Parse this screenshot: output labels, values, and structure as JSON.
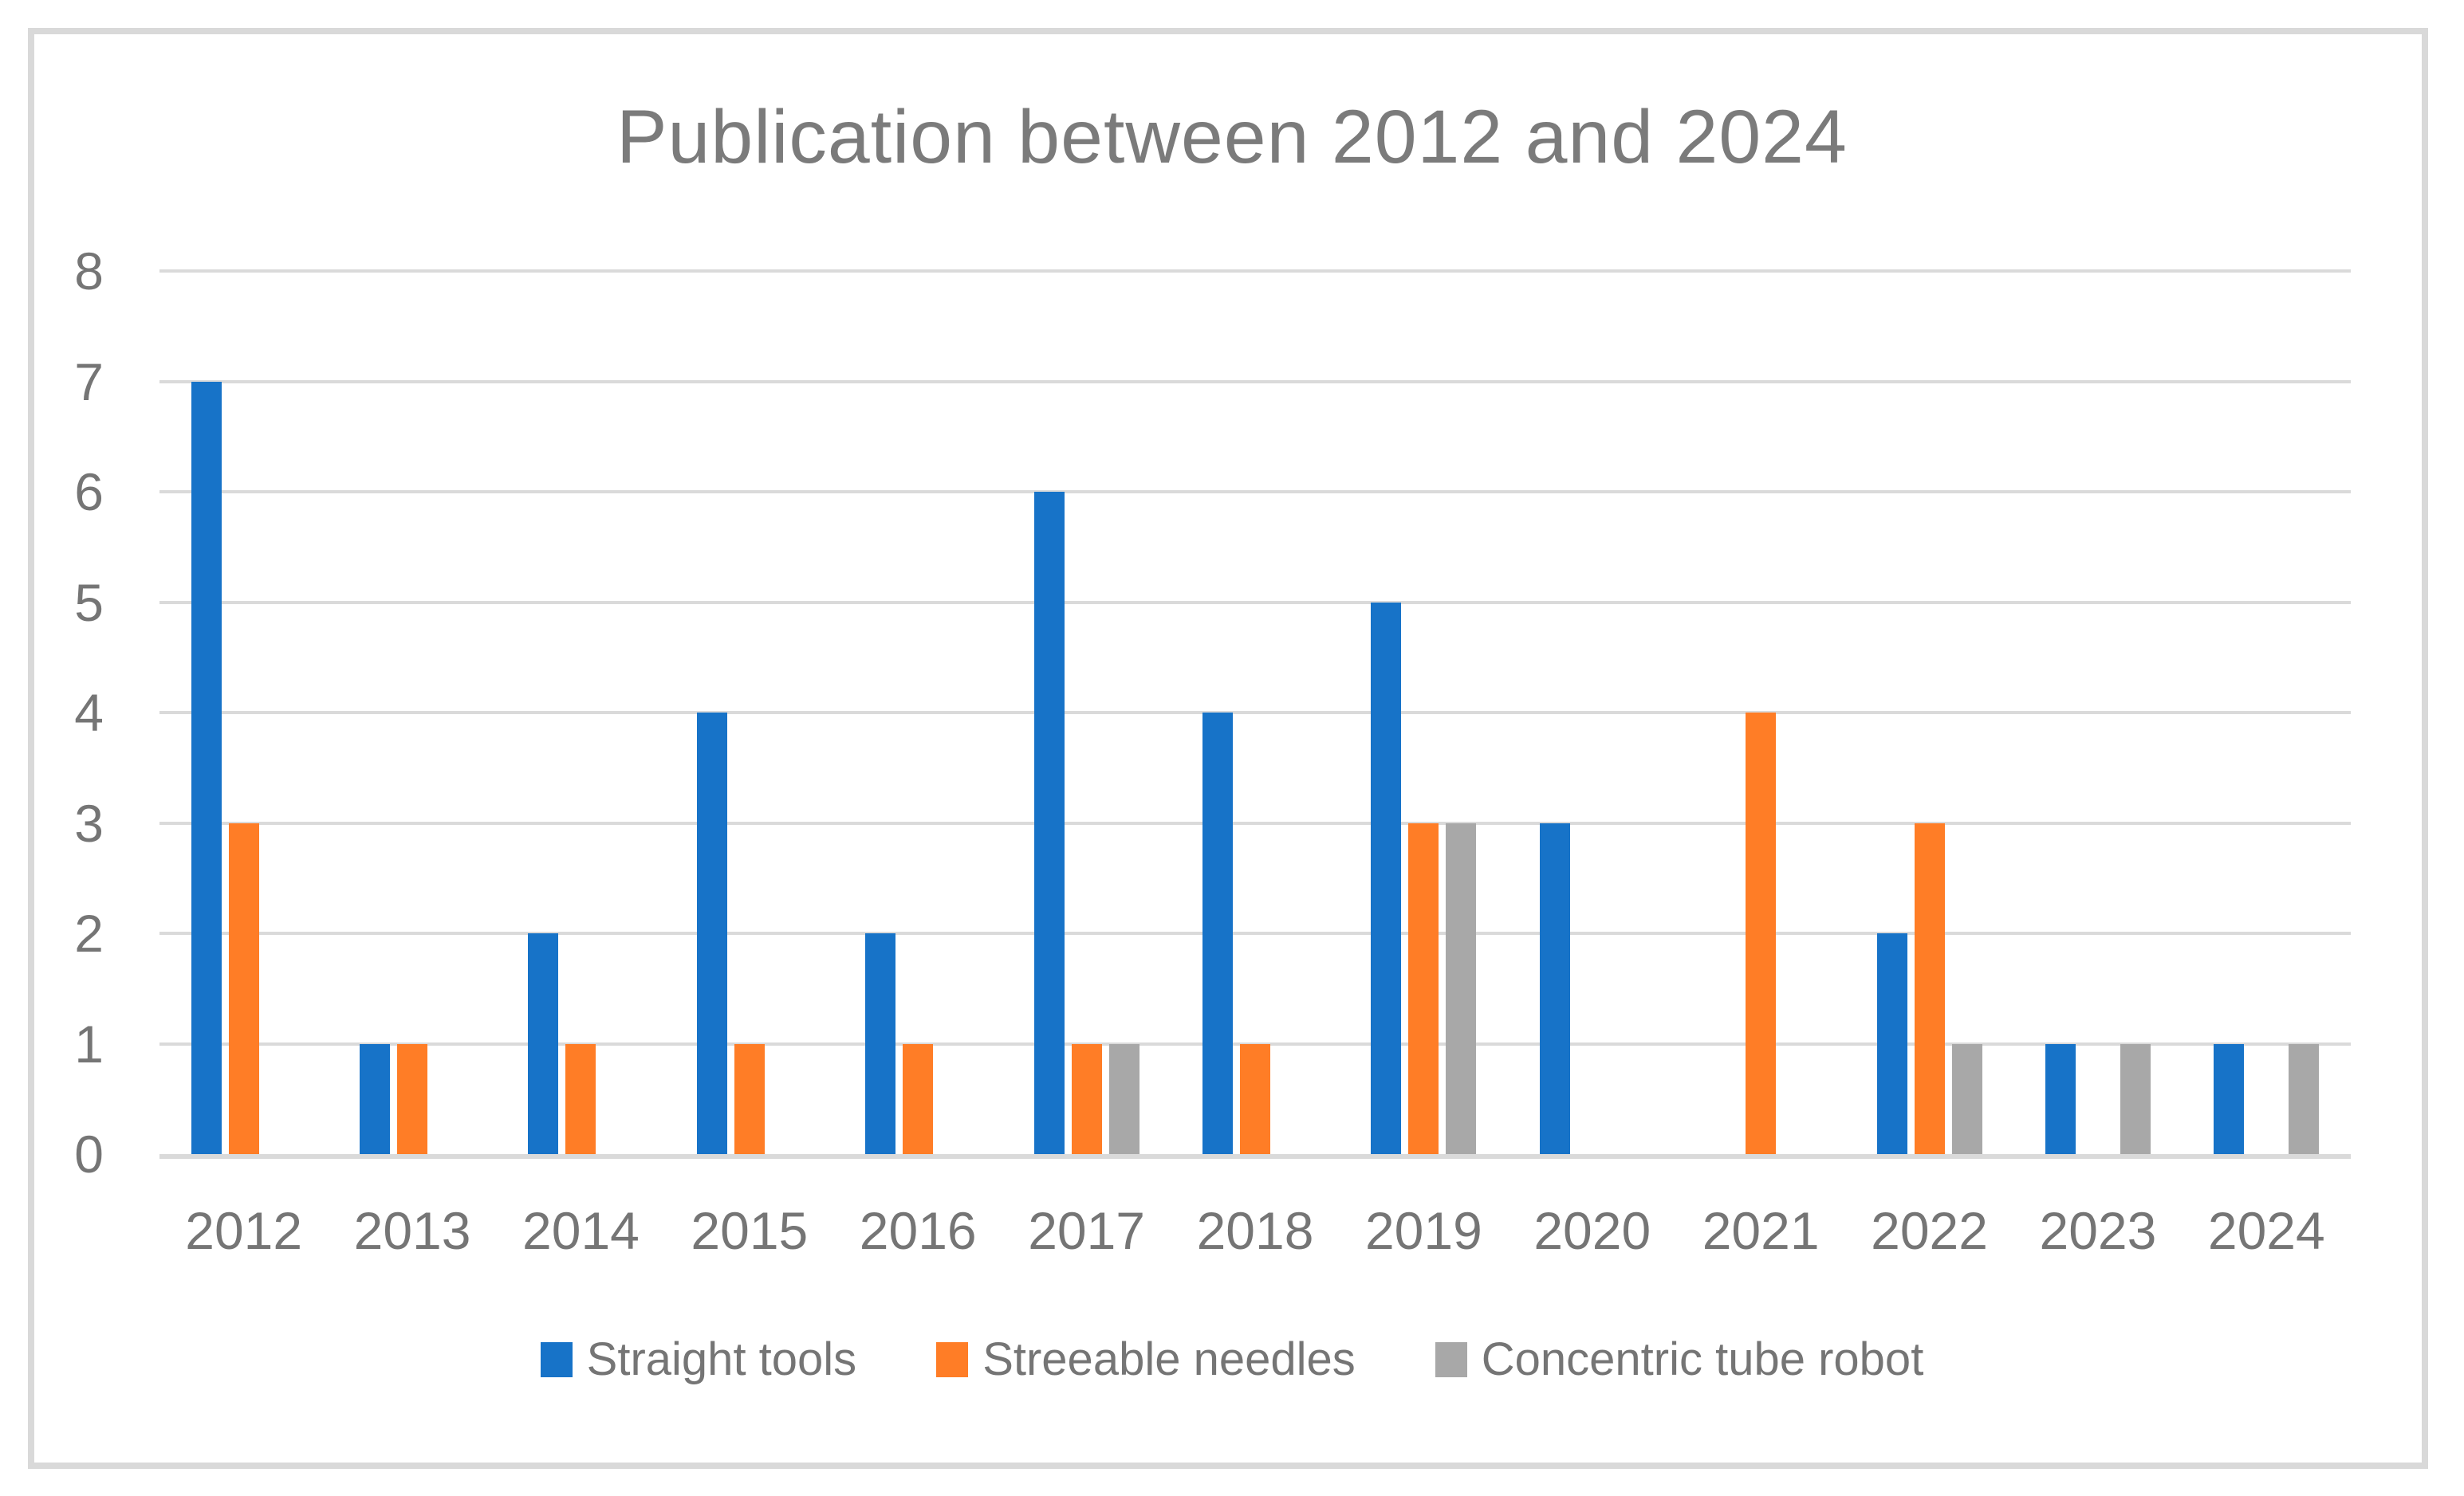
{
  "background": "#FFFFFF",
  "frame_color": "#D9D9D9",
  "text_colors": {
    "title": "#7B7B7B",
    "axis": "#757575",
    "legend": "#757575"
  },
  "chart_data": {
    "type": "bar",
    "title": "Publication between 2012 and 2024",
    "categories": [
      "2012",
      "2013",
      "2014",
      "2015",
      "2016",
      "2017",
      "2018",
      "2019",
      "2020",
      "2021",
      "2022",
      "2023",
      "2024"
    ],
    "series": [
      {
        "name": "Straight tools",
        "color": "#1773C8",
        "values": [
          7,
          1,
          2,
          4,
          2,
          6,
          4,
          5,
          3,
          0,
          2,
          1,
          1
        ]
      },
      {
        "name": "Streeable needles",
        "color": "#FF7D26",
        "values": [
          3,
          1,
          1,
          1,
          1,
          1,
          1,
          3,
          0,
          4,
          3,
          0,
          0
        ]
      },
      {
        "name": "Concentric tube robot",
        "color": "#A8A8A8",
        "values": [
          0,
          0,
          0,
          0,
          0,
          1,
          0,
          3,
          0,
          0,
          1,
          1,
          1
        ]
      }
    ],
    "xlabel": "",
    "ylabel": "",
    "ylim": [
      0,
      8
    ],
    "ytick_step": 1,
    "yticks": [
      0,
      1,
      2,
      3,
      4,
      5,
      6,
      7,
      8
    ],
    "grid": "horizontal",
    "gridline_color": "#DADADA",
    "legend_position": "bottom"
  }
}
